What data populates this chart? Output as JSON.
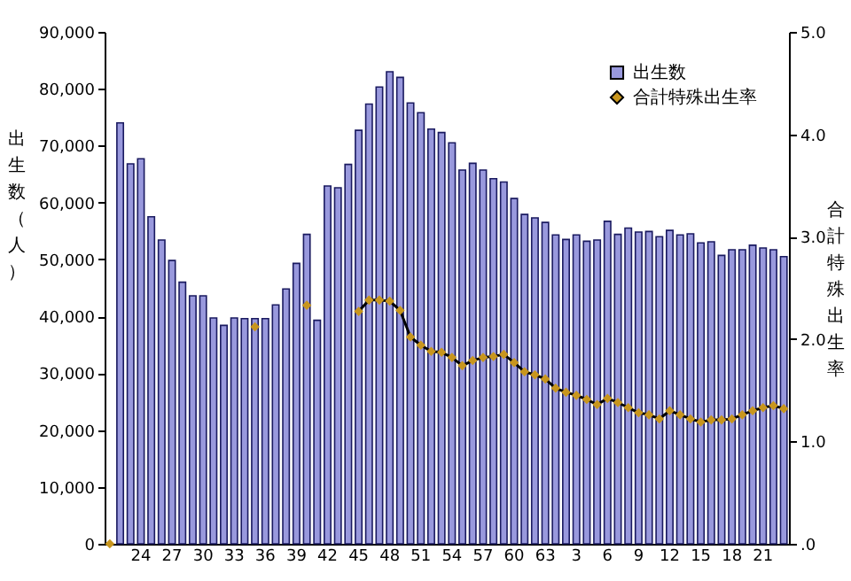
{
  "chart_data": {
    "type": "bar",
    "ylabel": "出生数（人）",
    "y2label": "合計特殊出生率",
    "categories": [
      null,
      null,
      null,
      "24",
      null,
      null,
      "27",
      null,
      null,
      "30",
      null,
      null,
      "33",
      null,
      null,
      "36",
      null,
      null,
      "39",
      null,
      null,
      "42",
      null,
      null,
      "45",
      null,
      null,
      "48",
      null,
      null,
      "51",
      null,
      null,
      "54",
      null,
      null,
      "57",
      null,
      null,
      "60",
      null,
      null,
      "63",
      null,
      null,
      "3",
      null,
      null,
      "6",
      null,
      null,
      "9",
      null,
      null,
      "12",
      null,
      null,
      "15",
      null,
      null,
      "18",
      null,
      null,
      "21",
      null,
      null
    ],
    "series": [
      {
        "name": "出生数",
        "color": "#9999dd",
        "values": [
          null,
          74000,
          66800,
          67700,
          57500,
          53400,
          49800,
          46000,
          43600,
          43600,
          39700,
          38400,
          39700,
          39600,
          39600,
          39600,
          42000,
          44800,
          49300,
          54400,
          39300,
          62900,
          62600,
          66700,
          72700,
          77300,
          80300,
          83000,
          82000,
          77500,
          75800,
          72900,
          72300,
          70500,
          65700,
          66900,
          65700,
          64200,
          63600,
          60700,
          57900,
          57300,
          56500,
          54300,
          53500,
          54300,
          53200,
          53400,
          56700,
          54400,
          55500,
          54800,
          54900,
          54000,
          55100,
          54300,
          54500,
          52900,
          53100,
          50700,
          51700,
          51700,
          52500,
          52000,
          51700,
          50500
        ]
      },
      {
        "name": "合計特殊出生率",
        "type": "line",
        "axis": "y2",
        "color": "#c8961e",
        "values": [
          0,
          null,
          null,
          null,
          null,
          null,
          null,
          null,
          null,
          null,
          null,
          null,
          null,
          null,
          2.12,
          null,
          null,
          null,
          null,
          2.33,
          null,
          null,
          null,
          null,
          2.27,
          2.38,
          2.38,
          2.37,
          2.28,
          2.02,
          1.94,
          1.88,
          1.87,
          1.82,
          1.74,
          1.79,
          1.82,
          1.83,
          1.85,
          1.77,
          1.68,
          1.65,
          1.61,
          1.52,
          1.48,
          1.45,
          1.41,
          1.36,
          1.42,
          1.38,
          1.33,
          1.28,
          1.26,
          1.22,
          1.3,
          1.26,
          1.22,
          1.19,
          1.21,
          1.21,
          1.22,
          1.26,
          1.3,
          1.33,
          1.35,
          1.32
        ]
      }
    ],
    "ylim": [
      0,
      90000
    ],
    "yticks": [
      0,
      {
        "value": 10000,
        "label": "10,000"
      },
      {
        "value": 20000,
        "label": "20,000"
      },
      {
        "value": 30000,
        "label": "30,000"
      },
      {
        "value": 40000,
        "label": "40,000"
      },
      {
        "value": 50000,
        "label": "50,000"
      },
      {
        "value": 60000,
        "label": "60,000"
      },
      {
        "value": 70000,
        "label": "70,000"
      },
      {
        "value": 80000,
        "label": "80,000"
      },
      {
        "value": 90000,
        "label": "90,000"
      }
    ],
    "y2lim": [
      0,
      5
    ],
    "y2ticks": [
      {
        "value": 0,
        "label": ".0"
      },
      {
        "value": 1,
        "label": "1.0"
      },
      {
        "value": 2,
        "label": "2.0"
      },
      {
        "value": 3,
        "label": "3.0"
      },
      {
        "value": 4,
        "label": "4.0"
      },
      {
        "value": 5,
        "label": "5.0"
      }
    ],
    "marker": "diamond",
    "legend": "top right",
    "grid": false
  }
}
